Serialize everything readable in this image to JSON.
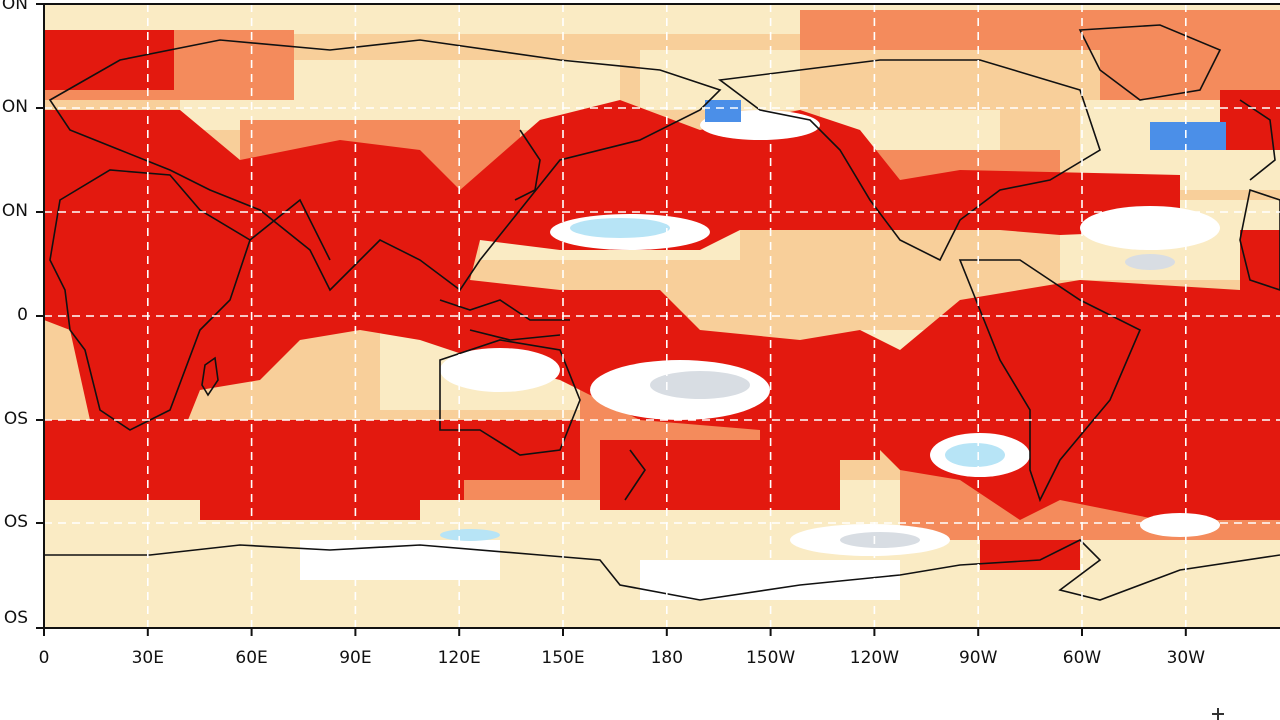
{
  "map": {
    "x_ticks": [
      "0",
      "30E",
      "60E",
      "90E",
      "120E",
      "150E",
      "180",
      "150W",
      "120W",
      "90W",
      "60W",
      "30W"
    ],
    "y_ticks": [
      "ON",
      "ON",
      "ON",
      "0",
      "OS",
      "OS",
      "OS"
    ],
    "gridlines": true,
    "projection": "plate-carree",
    "colors": {
      "dark_red": "#e3190f",
      "medium_orange": "#f48b5c",
      "light_peach": "#f8cf9a",
      "pale_cream": "#faebc4",
      "white": "#ffffff",
      "light_gray": "#d8dde3",
      "light_blue": "#b7e4f6",
      "medium_blue": "#4b8fe8",
      "coastline": "#111111",
      "gridline": "#ffffff"
    }
  }
}
